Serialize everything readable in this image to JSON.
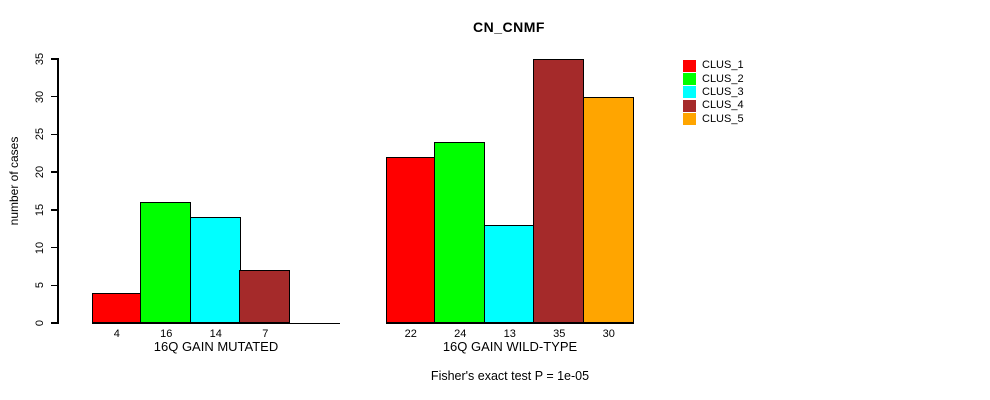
{
  "chart_data": {
    "type": "bar",
    "title": "CN_CNMF",
    "ylabel": "number of cases",
    "ylim": [
      0,
      35
    ],
    "yticks": [
      0,
      5,
      10,
      15,
      20,
      25,
      30,
      35
    ],
    "grid": false,
    "legend_position": "right",
    "legend": [
      {
        "label": "CLUS_1",
        "color": "#ff0000"
      },
      {
        "label": "CLUS_2",
        "color": "#00ff00"
      },
      {
        "label": "CLUS_3",
        "color": "#00ffff"
      },
      {
        "label": "CLUS_4",
        "color": "#a52a2a"
      },
      {
        "label": "CLUS_5",
        "color": "#ffa500"
      }
    ],
    "groups": [
      {
        "label": "16Q GAIN MUTATED",
        "bars": [
          {
            "cluster": "CLUS_1",
            "value": 4
          },
          {
            "cluster": "CLUS_2",
            "value": 16
          },
          {
            "cluster": "CLUS_3",
            "value": 14
          },
          {
            "cluster": "CLUS_4",
            "value": 7
          }
        ]
      },
      {
        "label": "16Q GAIN WILD-TYPE",
        "bars": [
          {
            "cluster": "CLUS_1",
            "value": 22
          },
          {
            "cluster": "CLUS_2",
            "value": 24
          },
          {
            "cluster": "CLUS_3",
            "value": 13
          },
          {
            "cluster": "CLUS_4",
            "value": 35
          },
          {
            "cluster": "CLUS_5",
            "value": 30
          }
        ]
      }
    ],
    "footnote": "Fisher's exact test P = 1e-05"
  }
}
